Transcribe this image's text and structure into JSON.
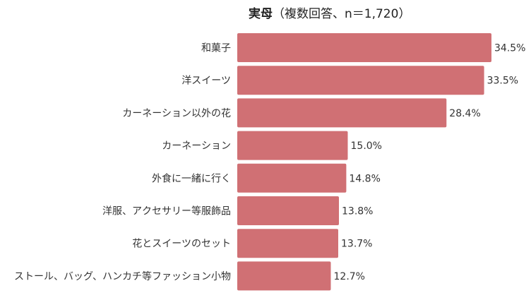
{
  "chart_data": {
    "type": "bar",
    "orientation": "horizontal",
    "title": "実母",
    "subtitle": "（複数回答、n＝1,720）",
    "categories": [
      "和菓子",
      "洋スイーツ",
      "カーネーション以外の花",
      "カーネーション",
      "外食に一緒に行く",
      "洋服、アクセサリー等服飾品",
      "花とスイーツのセット",
      "ストール、バッグ、ハンカチ等ファッション小物"
    ],
    "values": [
      34.5,
      33.5,
      28.4,
      15.0,
      14.8,
      13.8,
      13.7,
      12.7
    ],
    "value_labels": [
      "34.5%",
      "33.5%",
      "28.4%",
      "15.0%",
      "14.8%",
      "13.8%",
      "13.7%",
      "12.7%"
    ],
    "grid": false,
    "legend": "none",
    "bar_color": "#D07074"
  }
}
